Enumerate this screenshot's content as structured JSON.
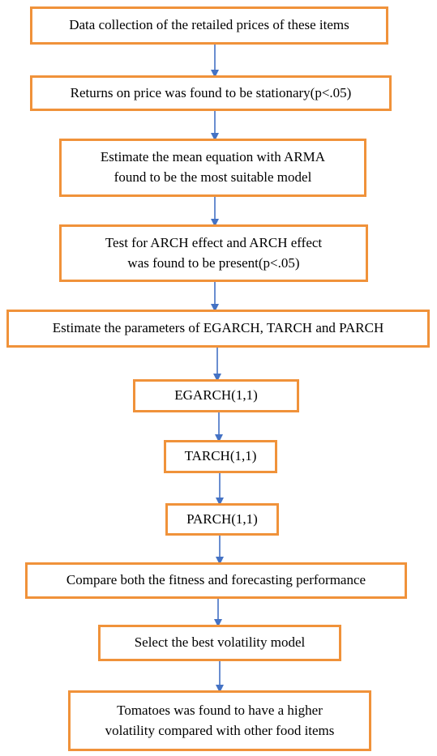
{
  "flowchart": {
    "steps": [
      {
        "id": "s1",
        "lines": [
          "Data collection of the retailed prices of these items"
        ]
      },
      {
        "id": "s2",
        "lines": [
          "Returns on price was found to be stationary(p<.05)"
        ]
      },
      {
        "id": "s3",
        "lines": [
          "Estimate the mean equation with ARMA",
          "found to be the most suitable model"
        ]
      },
      {
        "id": "s4",
        "lines": [
          "Test for ARCH effect and ARCH effect",
          "was found to be present(p<.05)"
        ]
      },
      {
        "id": "s5",
        "lines": [
          "Estimate the parameters of EGARCH,  TARCH and PARCH"
        ]
      },
      {
        "id": "s6",
        "lines": [
          "EGARCH(1,1)"
        ]
      },
      {
        "id": "s7",
        "lines": [
          "TARCH(1,1)"
        ]
      },
      {
        "id": "s8",
        "lines": [
          "PARCH(1,1)"
        ]
      },
      {
        "id": "s9",
        "lines": [
          "Compare both the fitness and forecasting performance"
        ]
      },
      {
        "id": "s10",
        "lines": [
          "Select the best volatility model"
        ]
      },
      {
        "id": "s11",
        "lines": [
          "Tomatoes was found to have a higher",
          "volatility compared with other food items"
        ]
      }
    ],
    "colors": {
      "box_border": "#F0923A",
      "arrow": "#4472C4"
    }
  }
}
